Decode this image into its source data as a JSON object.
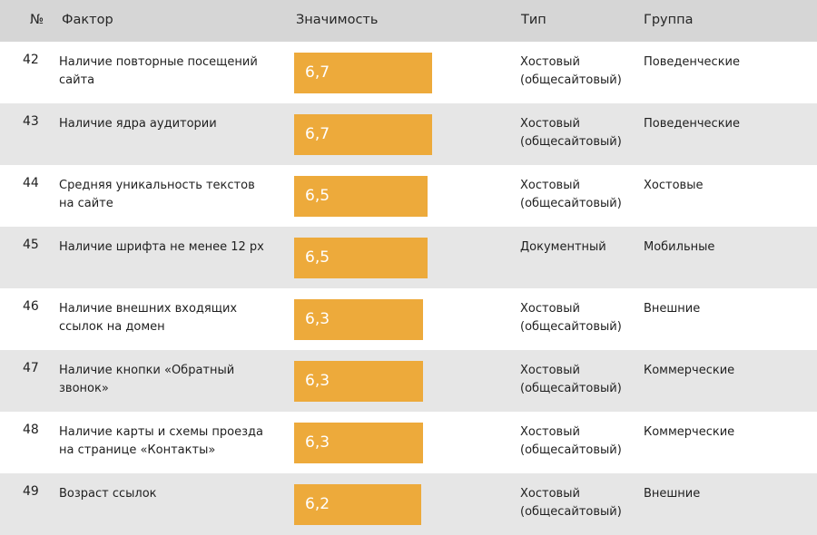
{
  "header": {
    "num": "№",
    "factor": "Фактор",
    "importance": "Значимость",
    "type": "Тип",
    "group": "Группа"
  },
  "colors": {
    "bar": "#edaa3b",
    "header_bg": "#d6d6d6",
    "stripe": "#e6e6e6"
  },
  "chart_data": {
    "type": "table",
    "columns": [
      "№",
      "Фактор",
      "Значимость",
      "Тип",
      "Группа"
    ],
    "rows": [
      {
        "num": "42",
        "factor": "Наличие повторные посещений сайта",
        "value": 6.7,
        "value_label": "6,7",
        "type": "Хостовый (общесайтовый)",
        "group": "Поведенческие"
      },
      {
        "num": "43",
        "factor": "Наличие ядра аудитории",
        "value": 6.7,
        "value_label": "6,7",
        "type": "Хостовый (общесайтовый)",
        "group": "Поведенческие"
      },
      {
        "num": "44",
        "factor": "Средняя уникальность текстов на сайте",
        "value": 6.5,
        "value_label": "6,5",
        "type": "Хостовый (общесайтовый)",
        "group": "Хостовые"
      },
      {
        "num": "45",
        "factor": "Наличие шрифта не менее 12 px",
        "value": 6.5,
        "value_label": "6,5",
        "type": "Документный",
        "group": "Мобильные"
      },
      {
        "num": "46",
        "factor": "Наличие внешних входящих ссылок на домен",
        "value": 6.3,
        "value_label": "6,3",
        "type": "Хостовый (общесайтовый)",
        "group": "Внешние"
      },
      {
        "num": "47",
        "factor": "Наличие кнопки «Обратный звонок»",
        "value": 6.3,
        "value_label": "6,3",
        "type": "Хостовый (общесайтовый)",
        "group": "Коммерческие"
      },
      {
        "num": "48",
        "factor": "Наличие карты и схемы проезда на странице «Контакты»",
        "value": 6.3,
        "value_label": "6,3",
        "type": "Хостовый (общесайтовый)",
        "group": "Коммерческие"
      },
      {
        "num": "49",
        "factor": "Возраст ссылок",
        "value": 6.2,
        "value_label": "6,2",
        "type": "Хостовый (общесайтовый)",
        "group": "Внешние"
      }
    ]
  }
}
